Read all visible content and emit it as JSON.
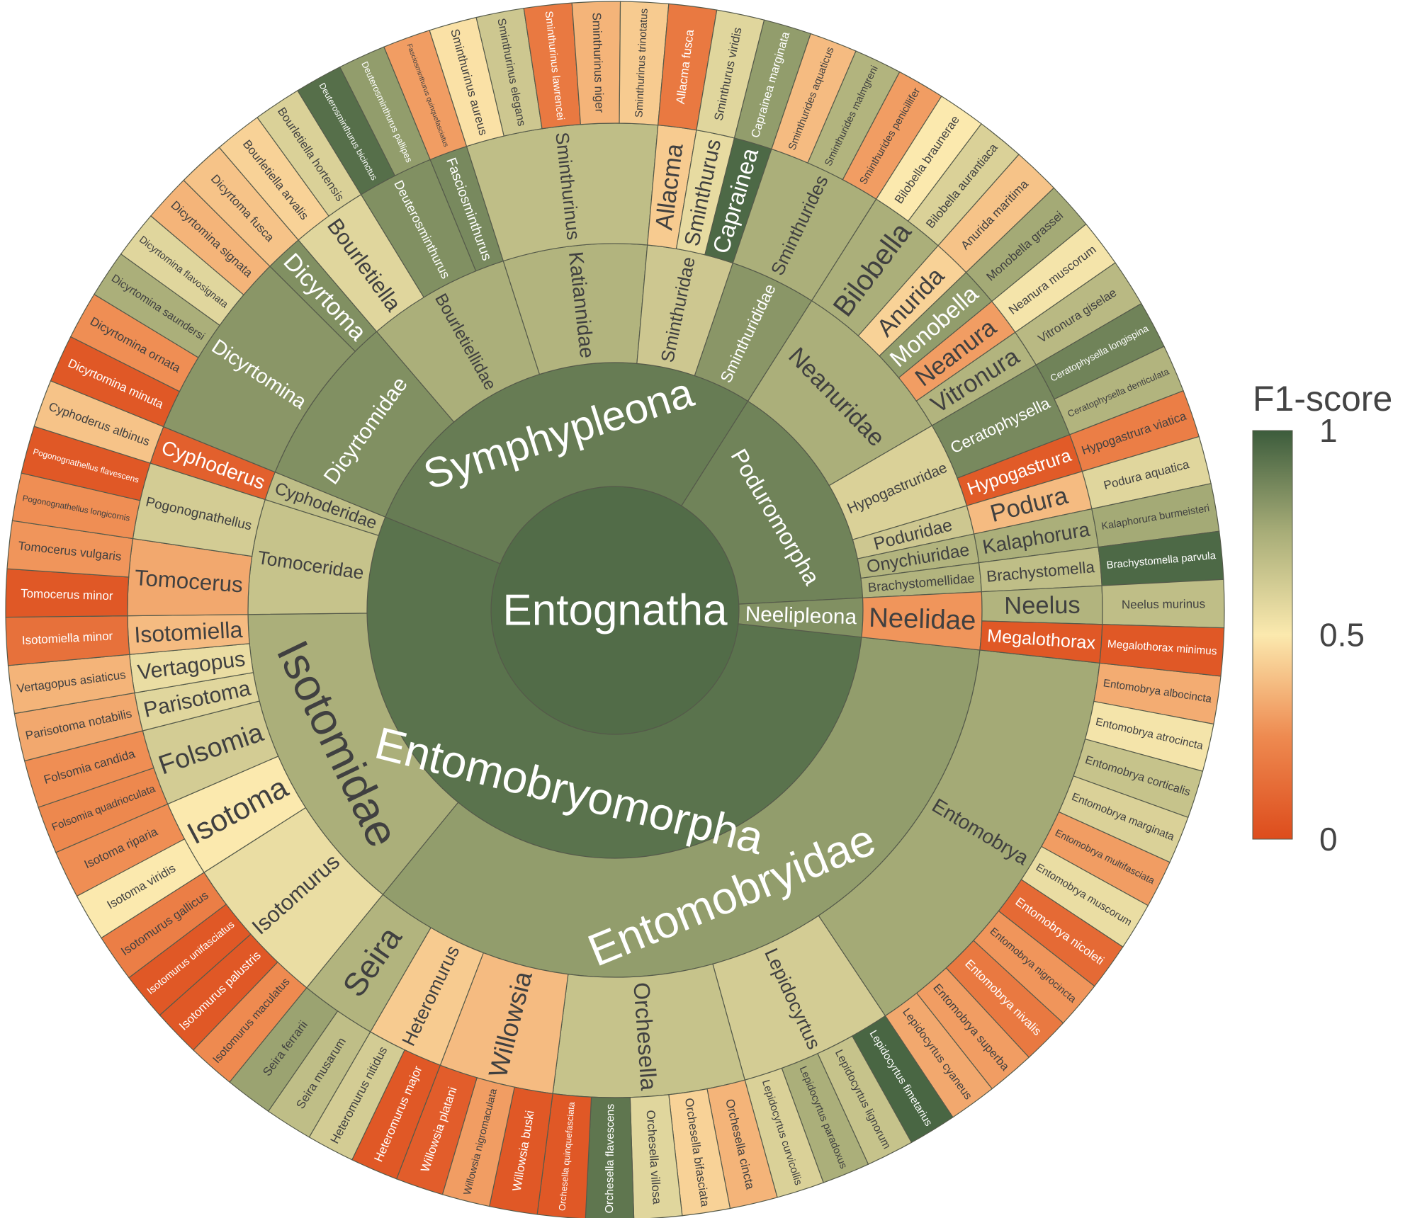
{
  "chart_data": {
    "type": "sunburst",
    "colorbar": {
      "title": "F1-score",
      "range": [
        0,
        1
      ],
      "ticks": [
        {
          "value": 1,
          "label": "1"
        },
        {
          "value": 0.5,
          "label": "0.5"
        },
        {
          "value": 0,
          "label": "0"
        }
      ],
      "colors": [
        "#dd4c1c",
        "#ee8a50",
        "#fbe9ae",
        "#a8ad78",
        "#3c5c3c"
      ]
    },
    "tree": {
      "name": "Entognatha",
      "score": 0.95,
      "children": [
        {
          "name": "Entomobryomorpha",
          "score": 0.93,
          "children": [
            {
              "name": "Entomobryidae",
              "score": 0.8,
              "children": [
                {
                  "name": "Entomobrya",
                  "score": 0.76,
                  "children": [
                    {
                      "name": "Entomobrya albocincta",
                      "score": 0.34
                    },
                    {
                      "name": "Entomobrya atrocincta",
                      "score": 0.52
                    },
                    {
                      "name": "Entomobrya corticalis",
                      "score": 0.66
                    },
                    {
                      "name": "Entomobrya marginata",
                      "score": 0.6
                    },
                    {
                      "name": "Entomobrya multifasciata",
                      "score": 0.3
                    },
                    {
                      "name": "Entomobrya muscorum",
                      "score": 0.55
                    },
                    {
                      "name": "Entomobrya nicoleti",
                      "score": 0.12
                    },
                    {
                      "name": "Entomobrya nigrocincta",
                      "score": 0.28
                    },
                    {
                      "name": "Entomobrya nivalis",
                      "score": 0.18
                    },
                    {
                      "name": "Entomobrya superba",
                      "score": 0.3
                    },
                    {
                      "name": "Lepidocyrtus cyaneus",
                      "score": 0.33
                    }
                  ]
                },
                {
                  "name": "Lepidocyrtus",
                  "score": 0.62,
                  "children": [
                    {
                      "name": "Lepidocyrtus fimetarius",
                      "score": 0.97
                    },
                    {
                      "name": "Lepidocyrtus lignorum",
                      "score": 0.66
                    },
                    {
                      "name": "Lepidocyrtus paradoxus",
                      "score": 0.74
                    },
                    {
                      "name": "Lepidocyrtus curvicollis",
                      "score": 0.6
                    }
                  ]
                },
                {
                  "name": "Orchesella",
                  "score": 0.66,
                  "children": [
                    {
                      "name": "Orchesella cincta",
                      "score": 0.36
                    },
                    {
                      "name": "Orchesella bifasciata",
                      "score": 0.44
                    },
                    {
                      "name": "Orchesella villosa",
                      "score": 0.58
                    },
                    {
                      "name": "Orchesella flavescens",
                      "score": 0.92
                    },
                    {
                      "name": "Orchesella quinquefasciata",
                      "score": 0.05
                    }
                  ]
                },
                {
                  "name": "Willowsia",
                  "score": 0.38,
                  "children": [
                    {
                      "name": "Willowsia buski",
                      "score": 0.05
                    },
                    {
                      "name": "Willowsia nigromaculata",
                      "score": 0.3
                    },
                    {
                      "name": "Willowsia platani",
                      "score": 0.07
                    }
                  ]
                },
                {
                  "name": "Heteromurus",
                  "score": 0.42,
                  "children": [
                    {
                      "name": "Heteromurus major",
                      "score": 0.05
                    },
                    {
                      "name": "Heteromurus nitidus",
                      "score": 0.62
                    }
                  ]
                },
                {
                  "name": "Seira",
                  "score": 0.72,
                  "children": [
                    {
                      "name": "Seira musarum",
                      "score": 0.68
                    },
                    {
                      "name": "Seira ferrarii",
                      "score": 0.78
                    }
                  ]
                }
              ]
            },
            {
              "name": "Isotomidae",
              "score": 0.74,
              "children": [
                {
                  "name": "Isotomurus",
                  "score": 0.55,
                  "children": [
                    {
                      "name": "Isotomurus maculatus",
                      "score": 0.25
                    },
                    {
                      "name": "Isotomurus palustris",
                      "score": 0.05
                    },
                    {
                      "name": "Isotomurus unifasciatus",
                      "score": 0.05
                    },
                    {
                      "name": "Isotomurus gallicus",
                      "score": 0.2
                    }
                  ]
                },
                {
                  "name": "Isotoma",
                  "score": 0.5,
                  "children": [
                    {
                      "name": "Isotoma viridis",
                      "score": 0.5
                    },
                    {
                      "name": "Isotoma riparia",
                      "score": 0.26
                    }
                  ]
                },
                {
                  "name": "Folsomia",
                  "score": 0.62,
                  "children": [
                    {
                      "name": "Folsomia quadrioculata",
                      "score": 0.24
                    },
                    {
                      "name": "Folsomia candida",
                      "score": 0.26
                    }
                  ]
                },
                {
                  "name": "Parisotoma",
                  "score": 0.58,
                  "children": [
                    {
                      "name": "Parisotoma notabilis",
                      "score": 0.33
                    }
                  ]
                },
                {
                  "name": "Vertagopus",
                  "score": 0.55,
                  "children": [
                    {
                      "name": "Vertagopus asiaticus",
                      "score": 0.36
                    }
                  ]
                },
                {
                  "name": "Isotomiella",
                  "score": 0.38,
                  "children": [
                    {
                      "name": "Isotomiella minor",
                      "score": 0.15
                    }
                  ]
                }
              ]
            },
            {
              "name": "Tomoceridae",
              "score": 0.66,
              "children": [
                {
                  "name": "Tomocerus",
                  "score": 0.33,
                  "children": [
                    {
                      "name": "Tomocerus minor",
                      "score": 0.05
                    },
                    {
                      "name": "Tomocerus vulgaris",
                      "score": 0.28
                    }
                  ]
                },
                {
                  "name": "Pogonognathellus",
                  "score": 0.62,
                  "children": [
                    {
                      "name": "Pogonognathellus longicornis",
                      "score": 0.26
                    },
                    {
                      "name": "Pogonognathellus flavescens",
                      "score": 0.05
                    }
                  ]
                }
              ]
            },
            {
              "name": "Cyphoderidae",
              "score": 0.68,
              "children": [
                {
                  "name": "Cyphoderus",
                  "score": 0.08,
                  "children": [
                    {
                      "name": "Cyphoderus albinus",
                      "score": 0.4
                    }
                  ]
                }
              ]
            }
          ]
        },
        {
          "name": "Symphypleona",
          "score": 0.9,
          "children": [
            {
              "name": "Dicyrtomidae",
              "score": 0.84,
              "children": [
                {
                  "name": "Dicyrtomina",
                  "score": 0.82,
                  "children": [
                    {
                      "name": "Dicyrtomina minuta",
                      "score": 0.05
                    },
                    {
                      "name": "Dicyrtomina ornata",
                      "score": 0.26
                    },
                    {
                      "name": "Dicyrtomina saundersi",
                      "score": 0.74
                    },
                    {
                      "name": "Dicyrtomina flavosignata",
                      "score": 0.58
                    },
                    {
                      "name": "Dicyrtomina signata",
                      "score": 0.36
                    }
                  ]
                },
                {
                  "name": "Dicyrtoma",
                  "score": 0.84,
                  "children": [
                    {
                      "name": "Dicyrtoma fusca",
                      "score": 0.4
                    }
                  ]
                }
              ]
            },
            {
              "name": "Bourletiellidae",
              "score": 0.74,
              "children": [
                {
                  "name": "Bourletiella",
                  "score": 0.58,
                  "children": [
                    {
                      "name": "Bourletiella arvalis",
                      "score": 0.44
                    },
                    {
                      "name": "Bourletiella hortensis",
                      "score": 0.6
                    }
                  ]
                },
                {
                  "name": "Deuterosminthurus",
                  "score": 0.84,
                  "children": [
                    {
                      "name": "Deuterosminthurus bicinctus",
                      "score": 0.94
                    },
                    {
                      "name": "Deuterosminthurus pallipes",
                      "score": 0.8
                    }
                  ]
                },
                {
                  "name": "Fasciosminthurus",
                  "score": 0.86,
                  "children": [
                    {
                      "name": "Fasciosminthurus quinquefasciatus",
                      "score": 0.3
                    }
                  ]
                }
              ]
            },
            {
              "name": "Katiannidae",
              "score": 0.72,
              "children": [
                {
                  "name": "Sminthurinus",
                  "score": 0.68,
                  "children": [
                    {
                      "name": "Sminthurinus aureus",
                      "score": 0.48
                    },
                    {
                      "name": "Sminthurinus elegans",
                      "score": 0.64
                    },
                    {
                      "name": "Sminthurinus lawrencei",
                      "score": 0.18
                    },
                    {
                      "name": "Sminthurinus niger",
                      "score": 0.36
                    },
                    {
                      "name": "Sminthurinus trinotatus",
                      "score": 0.42
                    }
                  ]
                }
              ]
            },
            {
              "name": "Sminthuridae",
              "score": 0.64,
              "children": [
                {
                  "name": "Allacma",
                  "score": 0.42,
                  "children": [
                    {
                      "name": "Allacma fusca",
                      "score": 0.18
                    }
                  ]
                },
                {
                  "name": "Sminthurus",
                  "score": 0.56,
                  "children": [
                    {
                      "name": "Sminthurus viridis",
                      "score": 0.58
                    }
                  ]
                },
                {
                  "name": "Caprainea",
                  "score": 0.96,
                  "children": [
                    {
                      "name": "Caprainea marginata",
                      "score": 0.8
                    }
                  ]
                }
              ]
            },
            {
              "name": "Sminthurididae",
              "score": 0.82,
              "children": [
                {
                  "name": "Sminthurides",
                  "score": 0.74,
                  "children": [
                    {
                      "name": "Sminthurides aquaticus",
                      "score": 0.38
                    },
                    {
                      "name": "Sminthurides malmgreni",
                      "score": 0.72
                    },
                    {
                      "name": "Sminthurides penicillifer",
                      "score": 0.3
                    }
                  ]
                }
              ]
            }
          ]
        },
        {
          "name": "Poduromorpha",
          "score": 0.88,
          "children": [
            {
              "name": "Neanuridae",
              "score": 0.74,
              "children": [
                {
                  "name": "Bilobella",
                  "score": 0.74,
                  "children": [
                    {
                      "name": "Bilobella braunerae",
                      "score": 0.5
                    },
                    {
                      "name": "Bilobella aurantiaca",
                      "score": 0.6
                    }
                  ]
                },
                {
                  "name": "Anurida",
                  "score": 0.44,
                  "children": [
                    {
                      "name": "Anurida maritima",
                      "score": 0.4
                    }
                  ]
                },
                {
                  "name": "Monobella",
                  "score": 0.8,
                  "children": [
                    {
                      "name": "Monobella grassei",
                      "score": 0.76
                    }
                  ]
                },
                {
                  "name": "Neanura",
                  "score": 0.3,
                  "children": [
                    {
                      "name": "Neanura muscorum",
                      "score": 0.52
                    }
                  ]
                },
                {
                  "name": "Vitronura",
                  "score": 0.72,
                  "children": [
                    {
                      "name": "Vitronura giselae",
                      "score": 0.7
                    }
                  ]
                }
              ]
            },
            {
              "name": "Hypogastruridae",
              "score": 0.6,
              "children": [
                {
                  "name": "Ceratophysella",
                  "score": 0.86,
                  "children": [
                    {
                      "name": "Ceratophysella longispina",
                      "score": 0.88
                    },
                    {
                      "name": "Ceratophysella denticulata",
                      "score": 0.72
                    }
                  ]
                },
                {
                  "name": "Hypogastrura",
                  "score": 0.06,
                  "children": [
                    {
                      "name": "Hypogastrura viatica",
                      "score": 0.2
                    }
                  ]
                }
              ]
            },
            {
              "name": "Poduridae",
              "score": 0.64,
              "children": [
                {
                  "name": "Podura",
                  "score": 0.38,
                  "children": [
                    {
                      "name": "Podura aquatica",
                      "score": 0.58
                    }
                  ]
                }
              ]
            },
            {
              "name": "Onychiuridae",
              "score": 0.72,
              "children": [
                {
                  "name": "Kalaphorura",
                  "score": 0.74,
                  "children": [
                    {
                      "name": "Kalaphorura burmeisteri",
                      "score": 0.76
                    }
                  ]
                }
              ]
            },
            {
              "name": "Brachystomellidae",
              "score": 0.72,
              "children": [
                {
                  "name": "Brachystomella",
                  "score": 0.68,
                  "children": [
                    {
                      "name": "Brachystomella parvula",
                      "score": 0.96
                    }
                  ]
                }
              ]
            }
          ]
        },
        {
          "name": "Neelipleona",
          "score": 0.84,
          "children": [
            {
              "name": "Neelidae",
              "score": 0.28,
              "children": [
                {
                  "name": "Neelus",
                  "score": 0.72,
                  "children": [
                    {
                      "name": "Neelus murinus",
                      "score": 0.68
                    }
                  ]
                },
                {
                  "name": "Megalothorax",
                  "score": 0.05,
                  "children": [
                    {
                      "name": "Megalothorax minimus",
                      "score": 0.05
                    }
                  ]
                }
              ]
            }
          ]
        }
      ]
    }
  }
}
